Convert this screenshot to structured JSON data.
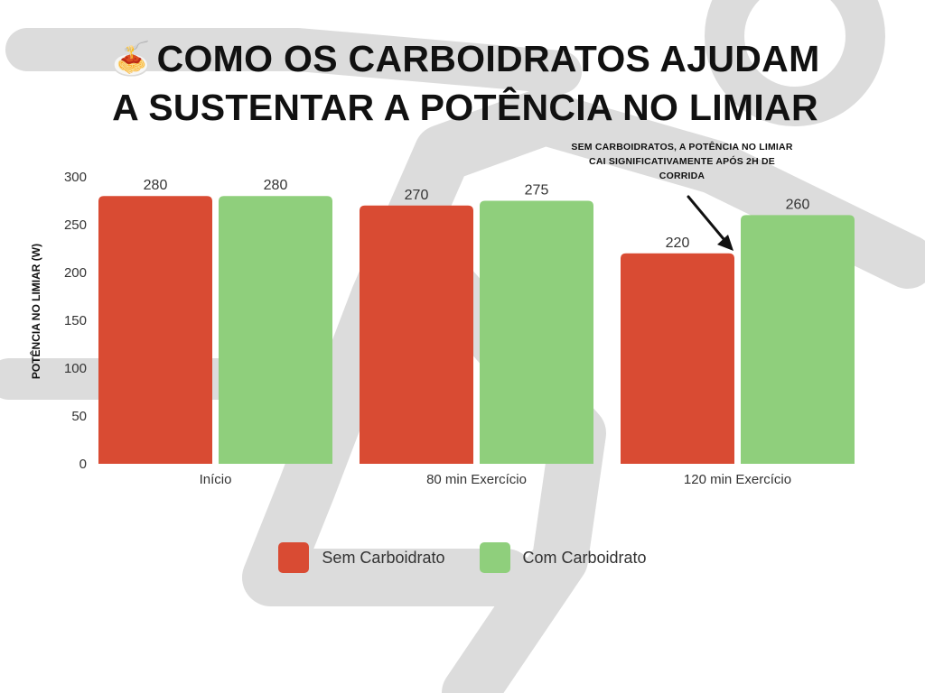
{
  "title": {
    "emoji": "🍝",
    "line1": "COMO OS CARBOIDRATOS AJUDAM",
    "line2": "A SUSTENTAR A POTÊNCIA NO LIMIAR"
  },
  "annotation": {
    "text": "SEM CARBOIDRATOS, A POTÊNCIA NO LIMIAR CAI SIGNIFICATIVAMENTE APÓS 2H DE CORRIDA"
  },
  "colors": {
    "sem": "#d94b33",
    "com": "#8fcf7c",
    "background_figure": "#dcdcdc"
  },
  "chart_data": {
    "type": "bar",
    "categories": [
      "Início",
      "80 min Exercício",
      "120 min Exercício"
    ],
    "series": [
      {
        "name": "Sem Carboidrato",
        "values": [
          280,
          270,
          220
        ]
      },
      {
        "name": "Com Carboidrato",
        "values": [
          280,
          275,
          260
        ]
      }
    ],
    "ylabel": "POTÊNCIA NO LIMIAR (W)",
    "xlabel": "",
    "ylim": [
      0,
      300
    ],
    "yticks": [
      0,
      50,
      100,
      150,
      200,
      250,
      300
    ],
    "grid": false,
    "data_labels": true,
    "legend": "bottom-center"
  }
}
